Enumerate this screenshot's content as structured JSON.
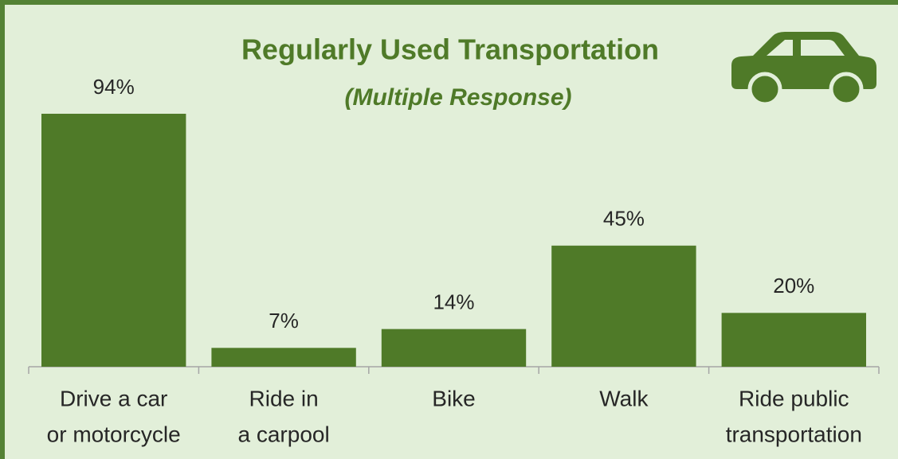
{
  "chart_data": {
    "type": "bar",
    "title": "Regularly Used Transportation",
    "subtitle": "(Multiple Response)",
    "categories": [
      [
        "Drive a car",
        "or motorcycle"
      ],
      [
        "Ride in",
        "a carpool"
      ],
      [
        "Bike"
      ],
      [
        "Walk"
      ],
      [
        "Ride public",
        "transportation"
      ]
    ],
    "values": [
      94,
      7,
      14,
      45,
      20
    ],
    "value_labels": [
      "94%",
      "7%",
      "14%",
      "45%",
      "20%"
    ],
    "color": "#4f7a28",
    "ylim": [
      0,
      100
    ]
  }
}
